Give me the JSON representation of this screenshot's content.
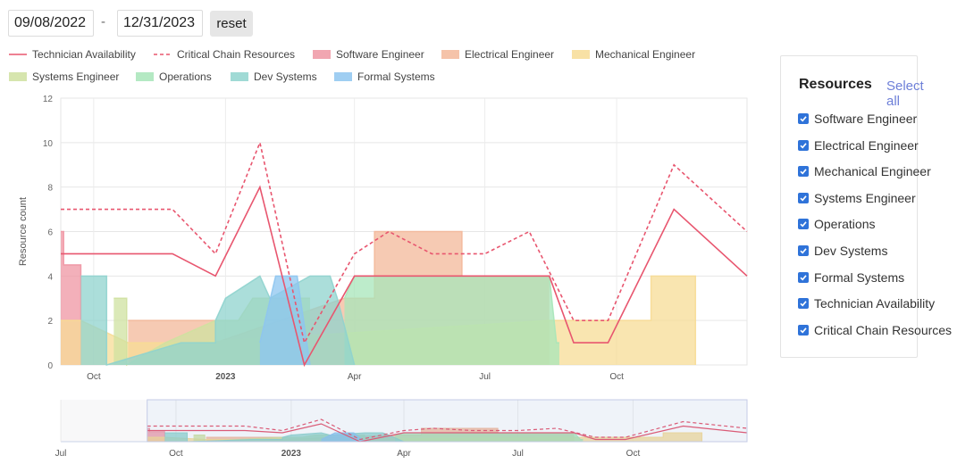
{
  "date_range": {
    "start": "09/08/2022",
    "end": "12/31/2023",
    "separator": "-",
    "reset_label": "reset"
  },
  "panel": {
    "title": "Resources",
    "select_all": "Select all",
    "items": [
      {
        "label": "Software Engineer",
        "checked": true
      },
      {
        "label": "Electrical Engineer",
        "checked": true
      },
      {
        "label": "Mechanical Engineer",
        "checked": true
      },
      {
        "label": "Systems Engineer",
        "checked": true
      },
      {
        "label": "Operations",
        "checked": true
      },
      {
        "label": "Dev Systems",
        "checked": true
      },
      {
        "label": "Formal Systems",
        "checked": true
      },
      {
        "label": "Technician Availability",
        "checked": true
      },
      {
        "label": "Critical Chain Resources",
        "checked": true
      }
    ]
  },
  "chart_data": {
    "type": "area",
    "ylabel": "Resource count",
    "ylim": [
      0,
      12
    ],
    "yticks": [
      "0",
      "2",
      "4",
      "6",
      "8",
      "10",
      "12"
    ],
    "grid": true,
    "legend_position": "top",
    "x_range": [
      "2022-09-08",
      "2023-12-31"
    ],
    "xticks": [
      {
        "date": "2022-10-01",
        "label": "Oct",
        "bold": false
      },
      {
        "date": "2023-01-01",
        "label": "2023",
        "bold": true
      },
      {
        "date": "2023-04-01",
        "label": "Apr",
        "bold": false
      },
      {
        "date": "2023-07-01",
        "label": "Jul",
        "bold": false
      },
      {
        "date": "2023-10-01",
        "label": "Oct",
        "bold": false
      }
    ],
    "navigator": {
      "x_range": [
        "2022-07-01",
        "2023-12-31"
      ],
      "selected": [
        "2022-09-08",
        "2023-12-31"
      ],
      "ticks": [
        {
          "date": "2022-07-01",
          "label": "Jul",
          "bold": false
        },
        {
          "date": "2022-10-01",
          "label": "Oct",
          "bold": false
        },
        {
          "date": "2023-01-01",
          "label": "2023",
          "bold": true
        },
        {
          "date": "2023-04-01",
          "label": "Apr",
          "bold": false
        },
        {
          "date": "2023-07-01",
          "label": "Jul",
          "bold": false
        },
        {
          "date": "2023-10-01",
          "label": "Oct",
          "bold": false
        }
      ]
    },
    "series": [
      {
        "name": "Technician Availability",
        "kind": "line",
        "dash": false,
        "color": "#e8566f",
        "points": [
          [
            "2022-09-08",
            5
          ],
          [
            "2022-11-25",
            5
          ],
          [
            "2022-12-25",
            4
          ],
          [
            "2023-01-25",
            8
          ],
          [
            "2023-02-25",
            0
          ],
          [
            "2023-04-01",
            4
          ],
          [
            "2023-08-15",
            4
          ],
          [
            "2023-09-01",
            1
          ],
          [
            "2023-09-25",
            1
          ],
          [
            "2023-11-10",
            7
          ],
          [
            "2023-12-31",
            4
          ]
        ]
      },
      {
        "name": "Critical Chain Resources",
        "kind": "line",
        "dash": true,
        "color": "#e8566f",
        "points": [
          [
            "2022-09-08",
            7
          ],
          [
            "2022-11-25",
            7
          ],
          [
            "2022-12-25",
            5
          ],
          [
            "2023-01-25",
            10
          ],
          [
            "2023-02-25",
            1
          ],
          [
            "2023-04-01",
            5
          ],
          [
            "2023-04-25",
            6
          ],
          [
            "2023-05-25",
            5
          ],
          [
            "2023-07-01",
            5
          ],
          [
            "2023-08-01",
            6
          ],
          [
            "2023-09-01",
            2
          ],
          [
            "2023-09-25",
            2
          ],
          [
            "2023-11-10",
            9
          ],
          [
            "2023-12-31",
            6
          ]
        ]
      },
      {
        "name": "Software Engineer",
        "kind": "area",
        "color": "#ef96a3",
        "points": [
          [
            "2022-09-08",
            6
          ],
          [
            "2022-09-10",
            6
          ],
          [
            "2022-09-10",
            4.5
          ],
          [
            "2022-09-22",
            4.5
          ],
          [
            "2022-09-22",
            0
          ]
        ]
      },
      {
        "name": "Electrical Engineer",
        "kind": "area",
        "color": "#f3b89a",
        "points": [
          [
            "2022-10-25",
            2
          ],
          [
            "2022-12-25",
            2
          ],
          [
            "2022-12-25",
            1
          ],
          [
            "2023-03-25",
            3
          ],
          [
            "2023-04-15",
            3
          ],
          [
            "2023-04-15",
            6
          ],
          [
            "2023-06-15",
            6
          ],
          [
            "2023-06-15",
            4
          ],
          [
            "2023-08-15",
            4
          ]
        ]
      },
      {
        "name": "Mechanical Engineer",
        "kind": "area",
        "color": "#f7dc95",
        "points": [
          [
            "2022-09-08",
            2
          ],
          [
            "2022-09-22",
            2
          ],
          [
            "2022-10-25",
            1
          ],
          [
            "2022-12-10",
            1
          ],
          [
            "2023-08-15",
            2
          ],
          [
            "2023-09-25",
            2
          ],
          [
            "2023-10-25",
            2
          ],
          [
            "2023-10-25",
            4
          ],
          [
            "2023-11-25",
            4
          ],
          [
            "2023-11-25",
            0
          ]
        ]
      },
      {
        "name": "Systems Engineer",
        "kind": "area",
        "color": "#cfe1a0",
        "points": [
          [
            "2022-10-15",
            3
          ],
          [
            "2022-10-24",
            3
          ],
          [
            "2022-10-24",
            0
          ],
          [
            "2022-11-20",
            1
          ],
          [
            "2022-12-25",
            2
          ],
          [
            "2023-01-10",
            2
          ],
          [
            "2023-01-20",
            3
          ],
          [
            "2023-03-01",
            3
          ]
        ]
      },
      {
        "name": "Operations",
        "kind": "area",
        "color": "#a7e5b9",
        "points": [
          [
            "2023-03-25",
            3
          ],
          [
            "2023-04-01",
            4
          ],
          [
            "2023-08-15",
            4
          ],
          [
            "2023-08-20",
            1
          ],
          [
            "2023-08-22",
            1
          ]
        ]
      },
      {
        "name": "Dev Systems",
        "kind": "area",
        "color": "#8fd3ce",
        "points": [
          [
            "2022-09-22",
            4
          ],
          [
            "2022-10-10",
            4
          ],
          [
            "2022-10-10",
            0
          ],
          [
            "2022-12-01",
            1
          ],
          [
            "2022-12-25",
            1
          ],
          [
            "2022-12-25",
            2
          ],
          [
            "2023-01-01",
            3
          ],
          [
            "2023-01-25",
            4
          ],
          [
            "2023-02-01",
            3
          ],
          [
            "2023-03-01",
            4
          ],
          [
            "2023-03-15",
            4
          ],
          [
            "2023-03-20",
            3
          ],
          [
            "2023-04-01",
            0
          ]
        ]
      },
      {
        "name": "Formal Systems",
        "kind": "area",
        "color": "#8ec5f0",
        "points": [
          [
            "2023-01-25",
            1
          ],
          [
            "2023-02-05",
            4
          ],
          [
            "2023-02-20",
            4
          ],
          [
            "2023-03-01",
            0
          ]
        ]
      }
    ]
  }
}
